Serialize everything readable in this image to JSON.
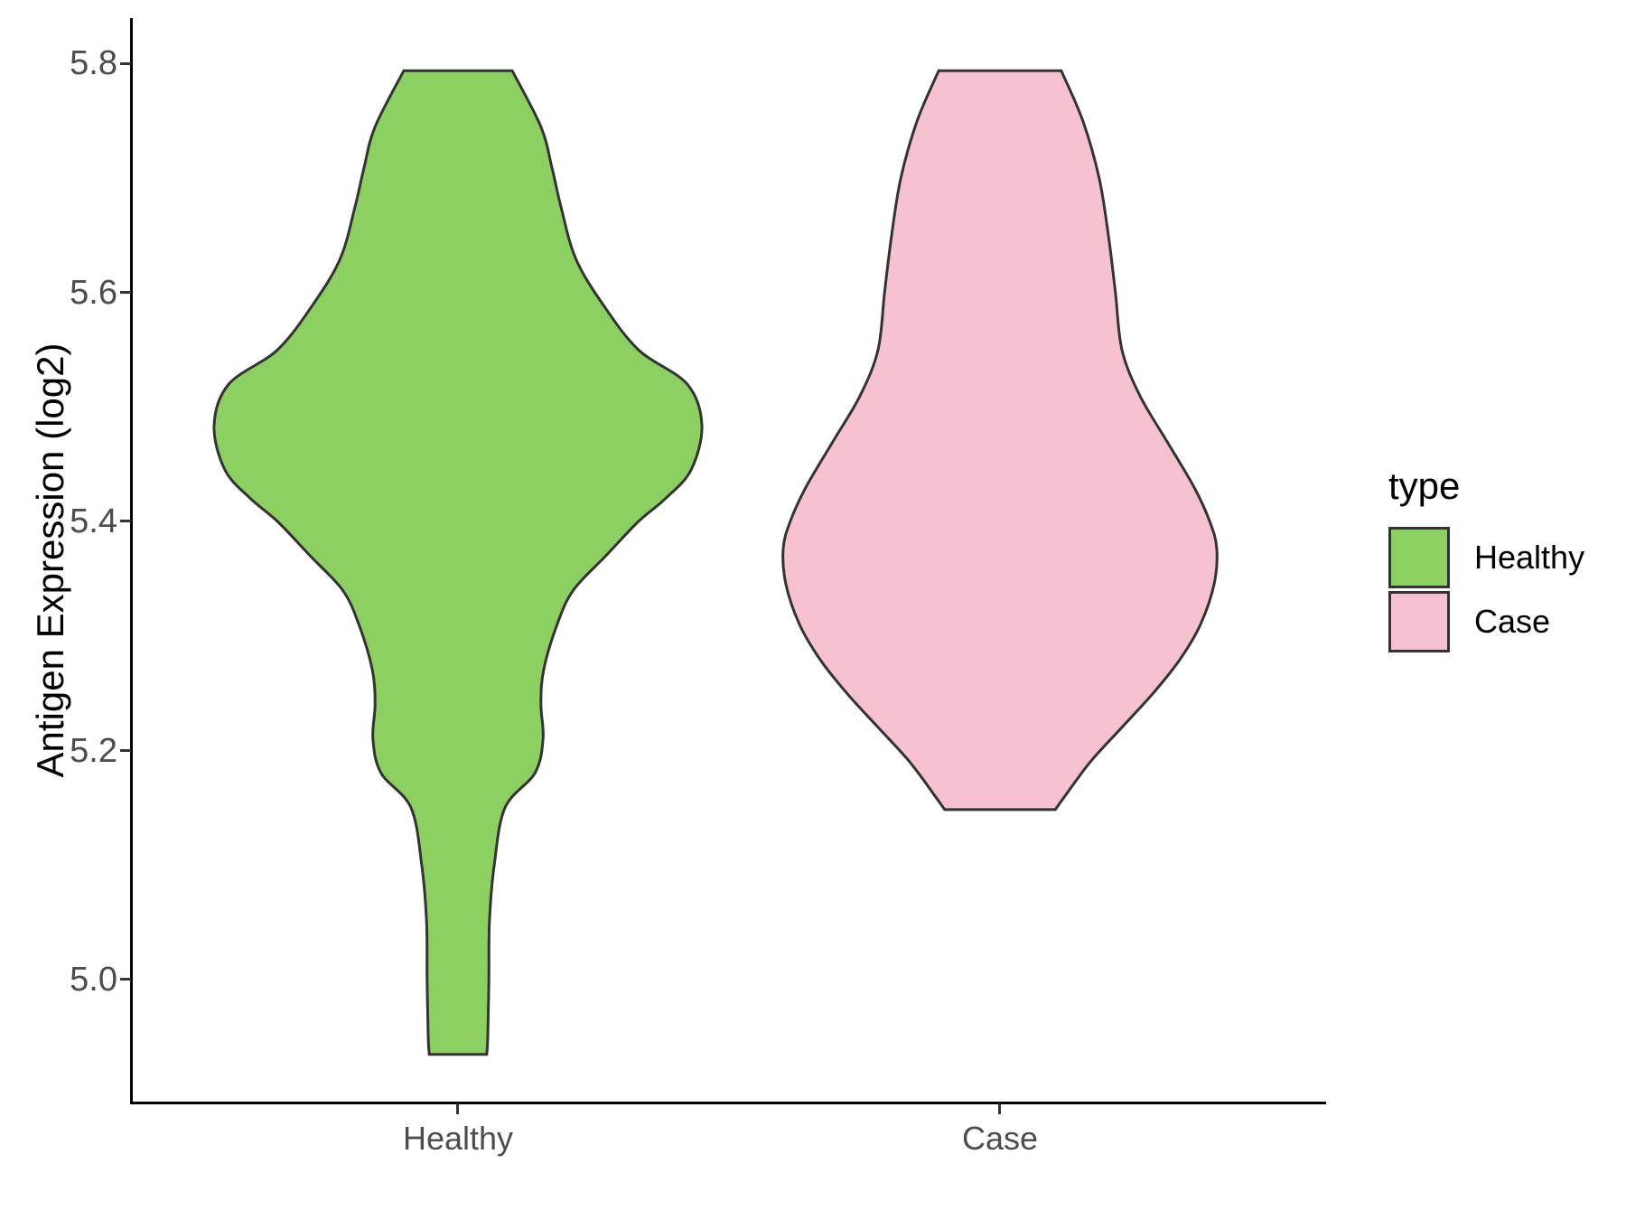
{
  "chart_data": {
    "type": "violin",
    "title": "",
    "xlabel": "",
    "ylabel": "Antigen Expression (log2)",
    "y_axis": {
      "tick_labels": [
        "5.8",
        "5.6",
        "5.4",
        "5.2",
        "5.0"
      ],
      "tick_values": [
        5.8,
        5.6,
        5.4,
        5.2,
        5.0
      ],
      "domain": [
        4.892,
        5.84
      ],
      "grid": false
    },
    "x_axis": {
      "categories": [
        "Healthy",
        "Case"
      ],
      "positions": [
        1,
        2
      ],
      "domain": [
        0.4,
        2.6
      ]
    },
    "legend": {
      "title": "type",
      "position": "right",
      "entries": [
        {
          "label": "Healthy",
          "color": "#8DD062"
        },
        {
          "label": "Case",
          "color": "#F6C2CF"
        }
      ]
    },
    "style": {
      "outline_color": "#333333",
      "outline_width": 3,
      "axis_color": "#000000",
      "tick_color": "#333333",
      "tick_label_color": "#4d4d4d",
      "text_color": "#000000",
      "background": "#ffffff"
    },
    "series": [
      {
        "name": "Healthy",
        "position": 1,
        "fill": "#8DD062",
        "value_range": [
          4.934,
          5.794
        ],
        "profile": [
          [
            5.794,
            0.1
          ],
          [
            5.745,
            0.153
          ],
          [
            5.71,
            0.173
          ],
          [
            5.675,
            0.19
          ],
          [
            5.63,
            0.217
          ],
          [
            5.59,
            0.267
          ],
          [
            5.55,
            0.333
          ],
          [
            5.52,
            0.423
          ],
          [
            5.484,
            0.45
          ],
          [
            5.445,
            0.43
          ],
          [
            5.42,
            0.383
          ],
          [
            5.4,
            0.333
          ],
          [
            5.37,
            0.273
          ],
          [
            5.34,
            0.213
          ],
          [
            5.31,
            0.183
          ],
          [
            5.27,
            0.158
          ],
          [
            5.24,
            0.153
          ],
          [
            5.21,
            0.157
          ],
          [
            5.18,
            0.142
          ],
          [
            5.15,
            0.087
          ],
          [
            5.1,
            0.067
          ],
          [
            5.05,
            0.058
          ],
          [
            5.0,
            0.057
          ],
          [
            4.95,
            0.055
          ],
          [
            4.934,
            0.053
          ]
        ]
      },
      {
        "name": "Case",
        "position": 2,
        "fill": "#F6C2CF",
        "value_range": [
          5.148,
          5.794
        ],
        "profile": [
          [
            5.794,
            0.113
          ],
          [
            5.75,
            0.153
          ],
          [
            5.7,
            0.183
          ],
          [
            5.65,
            0.2
          ],
          [
            5.6,
            0.213
          ],
          [
            5.55,
            0.225
          ],
          [
            5.51,
            0.258
          ],
          [
            5.47,
            0.308
          ],
          [
            5.43,
            0.358
          ],
          [
            5.4,
            0.387
          ],
          [
            5.376,
            0.4
          ],
          [
            5.345,
            0.395
          ],
          [
            5.31,
            0.37
          ],
          [
            5.28,
            0.333
          ],
          [
            5.25,
            0.283
          ],
          [
            5.22,
            0.225
          ],
          [
            5.19,
            0.167
          ],
          [
            5.16,
            0.12
          ],
          [
            5.148,
            0.102
          ]
        ]
      }
    ]
  }
}
